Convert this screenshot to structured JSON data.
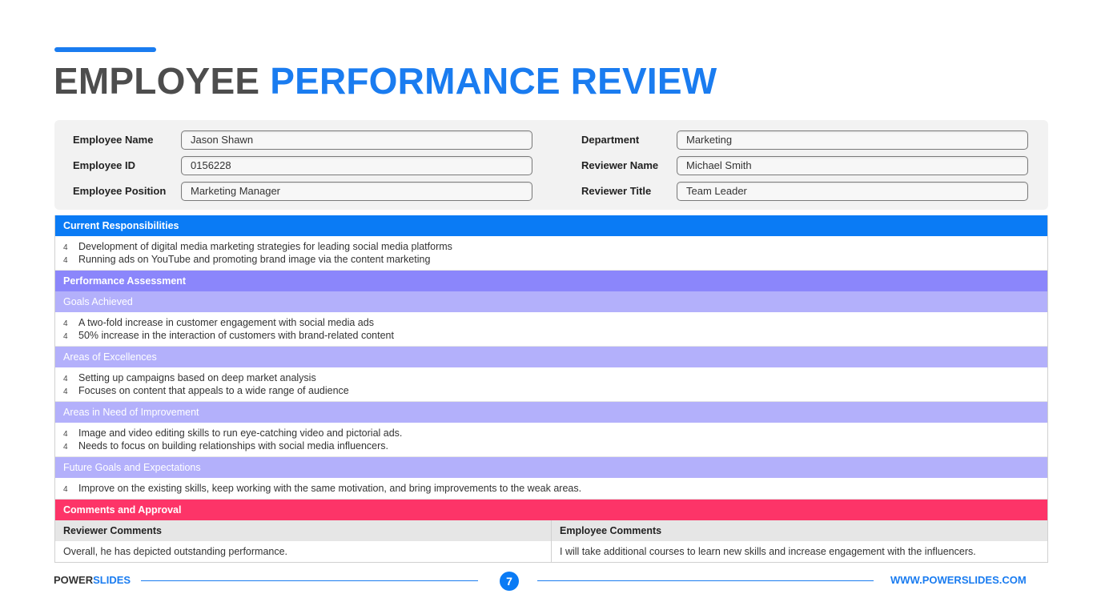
{
  "title": {
    "part1": "EMPLOYEE",
    "part2": "PERFORMANCE REVIEW"
  },
  "info": {
    "employee_name": {
      "label": "Employee Name",
      "value": "Jason Shawn"
    },
    "employee_id": {
      "label": "Employee ID",
      "value": "0156228"
    },
    "employee_position": {
      "label": "Employee Position",
      "value": "Marketing Manager"
    },
    "department": {
      "label": "Department",
      "value": "Marketing"
    },
    "reviewer_name": {
      "label": "Reviewer Name",
      "value": "Michael Smith"
    },
    "reviewer_title": {
      "label": "Reviewer Title",
      "value": "Team Leader"
    }
  },
  "responsibilities": {
    "heading": "Current Responsibilities",
    "items": [
      "Development of digital media marketing strategies for leading social media platforms",
      "Running ads on YouTube and promoting brand image via the content marketing"
    ]
  },
  "assessment": {
    "heading": "Performance Assessment",
    "sections": [
      {
        "title": "Goals Achieved",
        "items": [
          "A two-fold increase in customer engagement with social media ads",
          "50% increase in the interaction of customers with brand-related content"
        ]
      },
      {
        "title": "Areas of Excellences",
        "items": [
          "Setting up campaigns based on deep market analysis",
          "Focuses on content that appeals to a wide range of audience"
        ]
      },
      {
        "title": "Areas in Need of Improvement",
        "items": [
          "Image and video editing skills to run eye-catching video and pictorial ads.",
          "Needs to focus on building relationships with social media influencers."
        ]
      },
      {
        "title": "Future Goals and Expectations",
        "items": [
          "Improve on the existing skills, keep working with the same motivation, and bring improvements to the weak areas."
        ]
      }
    ]
  },
  "bullet_marker": "4",
  "comments": {
    "heading": "Comments and Approval",
    "reviewer": {
      "label": "Reviewer Comments",
      "text": "Overall, he has depicted outstanding performance."
    },
    "employee": {
      "label": "Employee Comments",
      "text": "I will take additional courses to learn new skills and increase engagement with the influencers."
    }
  },
  "footer": {
    "brand1": "POWER",
    "brand2": "SLIDES",
    "page": "7",
    "url": "WWW.POWERSLIDES.COM"
  },
  "colors": {
    "accent": "#1a7cf0",
    "blue_header": "#0a7bf5",
    "purple_header": "#8b86fb",
    "lavender_sub": "#b3b0fb",
    "pink_header": "#fd3468"
  }
}
